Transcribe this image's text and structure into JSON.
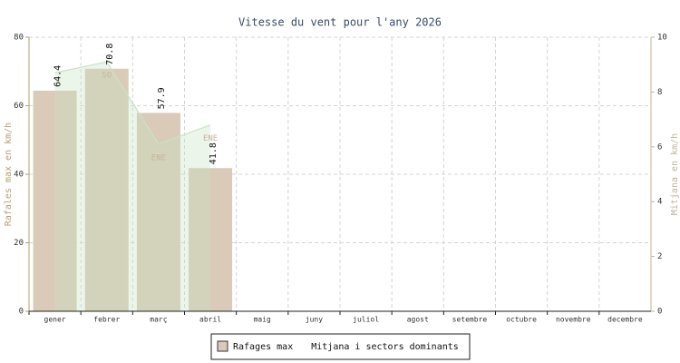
{
  "chart_data": {
    "type": "bar-area",
    "title": "Vitesse du vent pour l'any 2026",
    "ylabel": "Rafales max en km/h",
    "y2label": "Mitjana en km/h",
    "categories": [
      "gener",
      "febrer",
      "març",
      "abril",
      "maig",
      "juny",
      "juliol",
      "agost",
      "setembre",
      "octubre",
      "novembre",
      "decembre"
    ],
    "series": [
      {
        "name": "Rafages max",
        "color": "#d9cbb7",
        "values": [
          64.4,
          70.8,
          57.9,
          41.8,
          null,
          null,
          null,
          null,
          null,
          null,
          null,
          null
        ]
      },
      {
        "name": "Mitjana i sectors dominants",
        "color": "#c9e2c4",
        "axis": "y2",
        "values": [
          8.7,
          9.1,
          6.1,
          6.8,
          null,
          null,
          null,
          null,
          null,
          null,
          null,
          null
        ],
        "point_labels": [
          null,
          "SO",
          "ENE",
          "ENE",
          null,
          null,
          null,
          null,
          null,
          null,
          null,
          null
        ]
      }
    ],
    "ylim": [
      0,
      80
    ],
    "yticks": [
      0,
      20,
      40,
      60,
      80
    ],
    "y2lim": [
      0,
      10
    ],
    "y2ticks": [
      0,
      2,
      4,
      6,
      8,
      10
    ],
    "grid": true,
    "legend": "bottom"
  }
}
